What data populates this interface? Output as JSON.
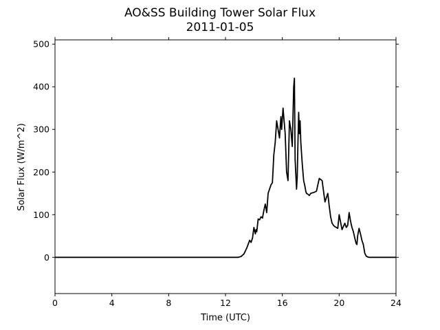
{
  "chart_data": {
    "type": "line",
    "title": "AO&SS Building Tower Solar Flux",
    "subtitle": "2011-01-05",
    "xlabel": "Time (UTC)",
    "ylabel": "Solar Flux (W/m^2)",
    "xlim": [
      0,
      24
    ],
    "ylim": [
      -85,
      510
    ],
    "xticks": [
      0,
      4,
      8,
      12,
      16,
      20,
      24
    ],
    "xtick_labels": [
      "0",
      "4",
      "8",
      "12",
      "16",
      "20",
      "24"
    ],
    "yticks": [
      0,
      100,
      200,
      300,
      400,
      500
    ],
    "ytick_labels": [
      "0",
      "100",
      "200",
      "300",
      "400",
      "500"
    ],
    "grid": false,
    "legend": "none",
    "series": [
      {
        "color": "#000000",
        "x": [
          0,
          12.9,
          13.1,
          13.3,
          13.5,
          13.7,
          13.8,
          13.9,
          14.0,
          14.1,
          14.15,
          14.2,
          14.3,
          14.4,
          14.5,
          14.6,
          14.7,
          14.8,
          14.9,
          15.0,
          15.1,
          15.2,
          15.3,
          15.4,
          15.5,
          15.6,
          15.7,
          15.8,
          15.9,
          15.95,
          16.0,
          16.05,
          16.1,
          16.2,
          16.3,
          16.4,
          16.5,
          16.6,
          16.7,
          16.8,
          16.85,
          16.9,
          17.0,
          17.05,
          17.1,
          17.15,
          17.2,
          17.25,
          17.3,
          17.4,
          17.5,
          17.6,
          17.65,
          17.7,
          17.8,
          17.9,
          18.0,
          18.2,
          18.4,
          18.6,
          18.8,
          19.0,
          19.2,
          19.3,
          19.4,
          19.5,
          19.6,
          19.7,
          19.9,
          20.0,
          20.2,
          20.4,
          20.5,
          20.6,
          20.7,
          20.8,
          20.9,
          21.0,
          21.1,
          21.2,
          21.25,
          21.3,
          21.4,
          21.5,
          21.6,
          21.7,
          21.8,
          21.9,
          22.0,
          22.1,
          22.2,
          22.3,
          22.4,
          22.5,
          22.6,
          22.8,
          23.0,
          24.0
        ],
        "y": [
          0,
          0,
          2,
          8,
          22,
          40,
          35,
          45,
          70,
          55,
          65,
          60,
          90,
          88,
          95,
          92,
          110,
          125,
          105,
          150,
          160,
          170,
          175,
          240,
          270,
          320,
          300,
          280,
          330,
          300,
          325,
          350,
          330,
          290,
          200,
          180,
          320,
          300,
          260,
          400,
          420,
          230,
          160,
          190,
          270,
          340,
          290,
          320,
          270,
          220,
          180,
          165,
          155,
          150,
          148,
          145,
          150,
          152,
          155,
          185,
          180,
          130,
          150,
          120,
          95,
          80,
          75,
          72,
          68,
          100,
          65,
          80,
          70,
          75,
          105,
          85,
          70,
          60,
          45,
          32,
          30,
          50,
          68,
          55,
          40,
          30,
          10,
          3,
          1,
          0,
          0,
          0,
          0,
          0,
          0,
          0,
          0,
          0
        ]
      }
    ]
  }
}
